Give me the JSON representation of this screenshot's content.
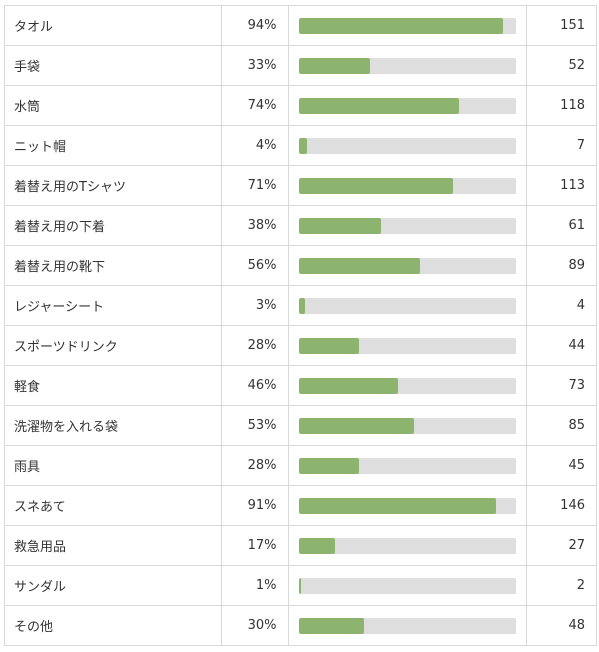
{
  "colors": {
    "bar_fill": "#8db46e",
    "bar_track": "#dedede",
    "border": "#d9d9d9",
    "text": "#333333"
  },
  "chart_data": {
    "type": "table",
    "columns": [
      "item",
      "percent",
      "bar",
      "count"
    ],
    "rows": [
      {
        "label": "タオル",
        "percent_text": "94%",
        "percent": 94,
        "count": "151"
      },
      {
        "label": "手袋",
        "percent_text": "33%",
        "percent": 33,
        "count": "52"
      },
      {
        "label": "水筒",
        "percent_text": "74%",
        "percent": 74,
        "count": "118"
      },
      {
        "label": "ニット帽",
        "percent_text": "4%",
        "percent": 4,
        "count": "7"
      },
      {
        "label": "着替え用のTシャツ",
        "percent_text": "71%",
        "percent": 71,
        "count": "113"
      },
      {
        "label": "着替え用の下着",
        "percent_text": "38%",
        "percent": 38,
        "count": "61"
      },
      {
        "label": "着替え用の靴下",
        "percent_text": "56%",
        "percent": 56,
        "count": "89"
      },
      {
        "label": "レジャーシート",
        "percent_text": "3%",
        "percent": 3,
        "count": "4"
      },
      {
        "label": "スポーツドリンク",
        "percent_text": "28%",
        "percent": 28,
        "count": "44"
      },
      {
        "label": "軽食",
        "percent_text": "46%",
        "percent": 46,
        "count": "73"
      },
      {
        "label": "洗濯物を入れる袋",
        "percent_text": "53%",
        "percent": 53,
        "count": "85"
      },
      {
        "label": "雨具",
        "percent_text": "28%",
        "percent": 28,
        "count": "45"
      },
      {
        "label": "スネあて",
        "percent_text": "91%",
        "percent": 91,
        "count": "146"
      },
      {
        "label": "救急用品",
        "percent_text": "17%",
        "percent": 17,
        "count": "27"
      },
      {
        "label": "サンダル",
        "percent_text": "1%",
        "percent": 1,
        "count": "2"
      },
      {
        "label": "その他",
        "percent_text": "30%",
        "percent": 30,
        "count": "48"
      }
    ]
  }
}
